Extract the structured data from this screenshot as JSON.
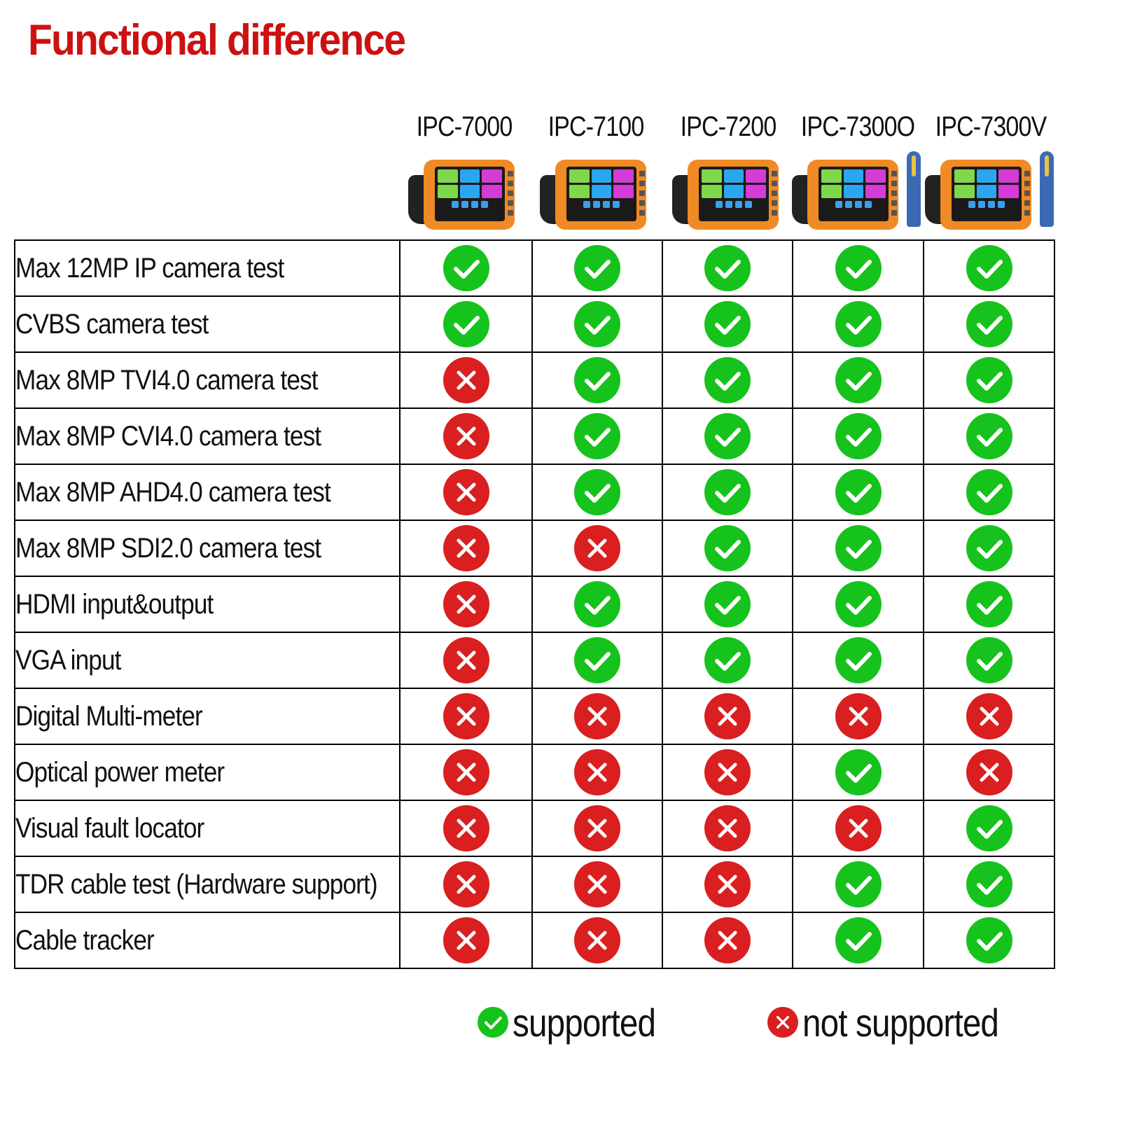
{
  "title": "Functional difference",
  "models": [
    "IPC-7000",
    "IPC-7100",
    "IPC-7200",
    "IPC-7300O",
    "IPC-7300V"
  ],
  "rows": [
    {
      "feature": "Max 12MP IP camera test",
      "support": [
        true,
        true,
        true,
        true,
        true
      ]
    },
    {
      "feature": "CVBS camera test",
      "support": [
        true,
        true,
        true,
        true,
        true
      ]
    },
    {
      "feature": "Max 8MP TVI4.0 camera test",
      "support": [
        false,
        true,
        true,
        true,
        true
      ]
    },
    {
      "feature": "Max 8MP CVI4.0 camera test",
      "support": [
        false,
        true,
        true,
        true,
        true
      ]
    },
    {
      "feature": "Max 8MP AHD4.0 camera test",
      "support": [
        false,
        true,
        true,
        true,
        true
      ]
    },
    {
      "feature": "Max 8MP SDI2.0 camera test",
      "support": [
        false,
        false,
        true,
        true,
        true
      ]
    },
    {
      "feature": "HDMI input&output",
      "support": [
        false,
        true,
        true,
        true,
        true
      ]
    },
    {
      "feature": "VGA input",
      "support": [
        false,
        true,
        true,
        true,
        true
      ]
    },
    {
      "feature": "Digital Multi-meter",
      "support": [
        false,
        false,
        false,
        false,
        false
      ]
    },
    {
      "feature": "Optical power meter",
      "support": [
        false,
        false,
        false,
        true,
        false
      ]
    },
    {
      "feature": "Visual fault locator",
      "support": [
        false,
        false,
        false,
        false,
        true
      ]
    },
    {
      "feature": "TDR cable test (Hardware support)",
      "support": [
        false,
        false,
        false,
        true,
        true
      ]
    },
    {
      "feature": "Cable tracker",
      "support": [
        false,
        false,
        false,
        true,
        true
      ]
    }
  ],
  "legend": {
    "supported": "supported",
    "not_supported": "not supported"
  },
  "colors": {
    "title": "#cc1111",
    "supported": "#16c21c",
    "not_supported": "#d91f1f",
    "device": "#f08a24"
  },
  "icons": {
    "supported": "check-circle-icon",
    "not_supported": "cross-circle-icon"
  }
}
